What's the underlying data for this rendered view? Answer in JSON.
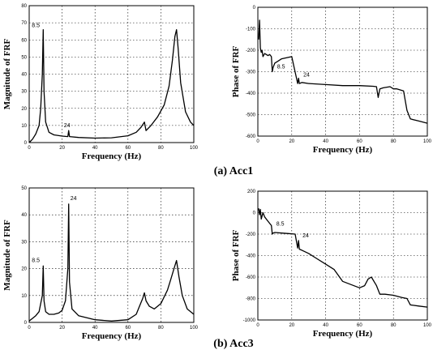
{
  "captions": [
    "(a) Acc1",
    "(b) Acc3"
  ],
  "chart_data": [
    {
      "type": "line",
      "xlabel": "Frequency (Hz)",
      "ylabel": "Magnitude of FRF",
      "xlim": [
        0,
        100
      ],
      "ylim": [
        0,
        80
      ],
      "xticks": [
        0,
        20,
        40,
        60,
        80,
        100
      ],
      "yticks": [
        0,
        10,
        20,
        30,
        40,
        50,
        60,
        70,
        80
      ],
      "grid": true,
      "x": [
        0,
        2,
        4,
        6,
        7,
        8,
        8.5,
        9,
        10,
        12,
        15,
        20,
        23.5,
        24,
        24.5,
        30,
        40,
        50,
        60,
        65,
        68,
        70,
        71,
        74,
        78,
        82,
        85,
        87,
        88.5,
        89.5,
        90.5,
        92,
        95,
        98,
        100
      ],
      "y": [
        0,
        2,
        5,
        10,
        20,
        40,
        66,
        30,
        12,
        6,
        4.5,
        3.8,
        3.5,
        7,
        3.5,
        3,
        2.6,
        2.8,
        4,
        6,
        9,
        12,
        7,
        10,
        15,
        22,
        33,
        48,
        62,
        66,
        55,
        35,
        18,
        12,
        10
      ],
      "annotations": [
        {
          "text": "8.5",
          "x": 8.5,
          "y": 66
        },
        {
          "text": "24",
          "x": 24,
          "y": 7
        }
      ]
    },
    {
      "type": "line",
      "xlabel": "Frequency (Hz)",
      "ylabel": "Phase of FRF",
      "xlim": [
        0,
        100
      ],
      "ylim": [
        -600,
        0
      ],
      "xticks": [
        0,
        20,
        40,
        60,
        80,
        100
      ],
      "yticks": [
        0,
        -100,
        -200,
        -300,
        -400,
        -500,
        -600
      ],
      "grid": true,
      "x": [
        0.5,
        1,
        1.5,
        2,
        2.5,
        3,
        4,
        5,
        6,
        7,
        8,
        8.5,
        9,
        10,
        12,
        14,
        20,
        23.5,
        24,
        24.5,
        26,
        30,
        40,
        50,
        60,
        68,
        70,
        71,
        72,
        74,
        78,
        80,
        82,
        84,
        86,
        88,
        90,
        95,
        100
      ],
      "y": [
        -150,
        -60,
        -190,
        -210,
        -200,
        -230,
        -215,
        -220,
        -225,
        -220,
        -230,
        -300,
        -280,
        -260,
        -250,
        -240,
        -230,
        -355,
        -330,
        -355,
        -350,
        -355,
        -360,
        -365,
        -365,
        -368,
        -370,
        -420,
        -380,
        -375,
        -370,
        -380,
        -380,
        -385,
        -390,
        -480,
        -520,
        -530,
        -540
      ],
      "annotations": [
        {
          "text": "8.5",
          "x": 8.5,
          "y": -300
        },
        {
          "text": "24",
          "x": 24,
          "y": -330
        }
      ]
    },
    {
      "type": "line",
      "xlabel": "Frequency (Hz)",
      "ylabel": "Magnitude of FRF",
      "xlim": [
        0,
        100
      ],
      "ylim": [
        0,
        50
      ],
      "xticks": [
        0,
        20,
        40,
        60,
        80,
        100
      ],
      "yticks": [
        0,
        10,
        20,
        30,
        40,
        50
      ],
      "grid": true,
      "x": [
        0,
        2,
        4,
        6,
        8,
        8.5,
        9,
        10,
        12,
        15,
        18,
        20,
        22,
        23.5,
        24,
        24.5,
        26,
        30,
        40,
        50,
        60,
        65,
        67,
        69,
        70,
        71,
        73,
        76,
        80,
        84,
        86,
        88,
        89.5,
        91,
        93,
        96,
        100
      ],
      "y": [
        0.5,
        1.5,
        2.5,
        4,
        10,
        21,
        8,
        4,
        3,
        3,
        3.5,
        4.5,
        8,
        20,
        44,
        15,
        5,
        2.5,
        1,
        0.5,
        1,
        3,
        6,
        9,
        11,
        8,
        6,
        5,
        7,
        12,
        16,
        20,
        23,
        17,
        10,
        5,
        3
      ],
      "annotations": [
        {
          "text": "8.5",
          "x": 8.5,
          "y": 21
        },
        {
          "text": "24",
          "x": 24,
          "y": 44
        }
      ]
    },
    {
      "type": "line",
      "xlabel": "Frequency (Hz)",
      "ylabel": "Phase of FRF",
      "xlim": [
        0,
        100
      ],
      "ylim": [
        -1000,
        200
      ],
      "xticks": [
        0,
        20,
        40,
        60,
        80,
        100
      ],
      "yticks": [
        200,
        0,
        -200,
        -400,
        -600,
        -800,
        -1000
      ],
      "grid": true,
      "x": [
        0.5,
        1,
        1.5,
        2,
        3,
        4,
        6,
        8,
        8.5,
        9,
        10,
        14,
        18,
        22,
        23.5,
        24,
        24.5,
        26,
        30,
        35,
        40,
        45,
        50,
        55,
        60,
        63,
        65,
        67,
        70,
        72,
        75,
        80,
        85,
        88,
        90,
        95,
        100
      ],
      "y": [
        40,
        -20,
        30,
        -60,
        0,
        -40,
        -80,
        -120,
        -200,
        -190,
        -185,
        -190,
        -195,
        -200,
        -330,
        -260,
        -340,
        -350,
        -380,
        -430,
        -480,
        -530,
        -640,
        -670,
        -700,
        -680,
        -620,
        -600,
        -680,
        -760,
        -760,
        -770,
        -790,
        -800,
        -860,
        -870,
        -880
      ],
      "annotations": [
        {
          "text": "8.5",
          "x": 8.5,
          "y": -120
        },
        {
          "text": "24",
          "x": 24,
          "y": -260
        }
      ]
    }
  ]
}
